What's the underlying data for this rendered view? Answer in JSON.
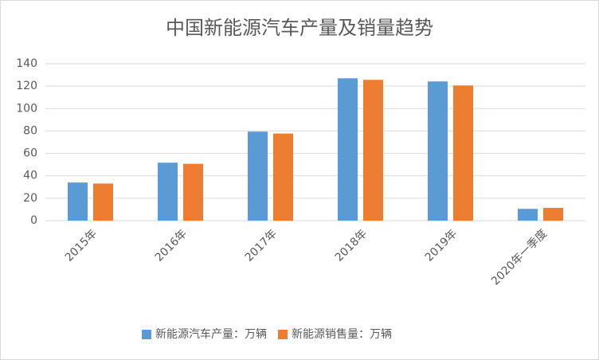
{
  "chart_data": {
    "type": "bar",
    "title": "中国新能源汽车产量及销量趋势",
    "categories": [
      "2015年",
      "2016年",
      "2017年",
      "2018年",
      "2019年",
      "2020年一季度"
    ],
    "series": [
      {
        "name": "新能源汽车产量：万辆",
        "color": "#5b9bd5",
        "values": [
          34.0,
          51.7,
          79.4,
          127.0,
          124.2,
          10.5
        ]
      },
      {
        "name": "新能源销售量：万辆",
        "color": "#ed7d31",
        "values": [
          33.1,
          50.7,
          77.7,
          125.6,
          120.6,
          11.4
        ]
      }
    ],
    "ylim": [
      0,
      140
    ],
    "yticks": [
      0,
      20,
      40,
      60,
      80,
      100,
      120,
      140
    ],
    "grid": true,
    "legend": "bottom"
  }
}
